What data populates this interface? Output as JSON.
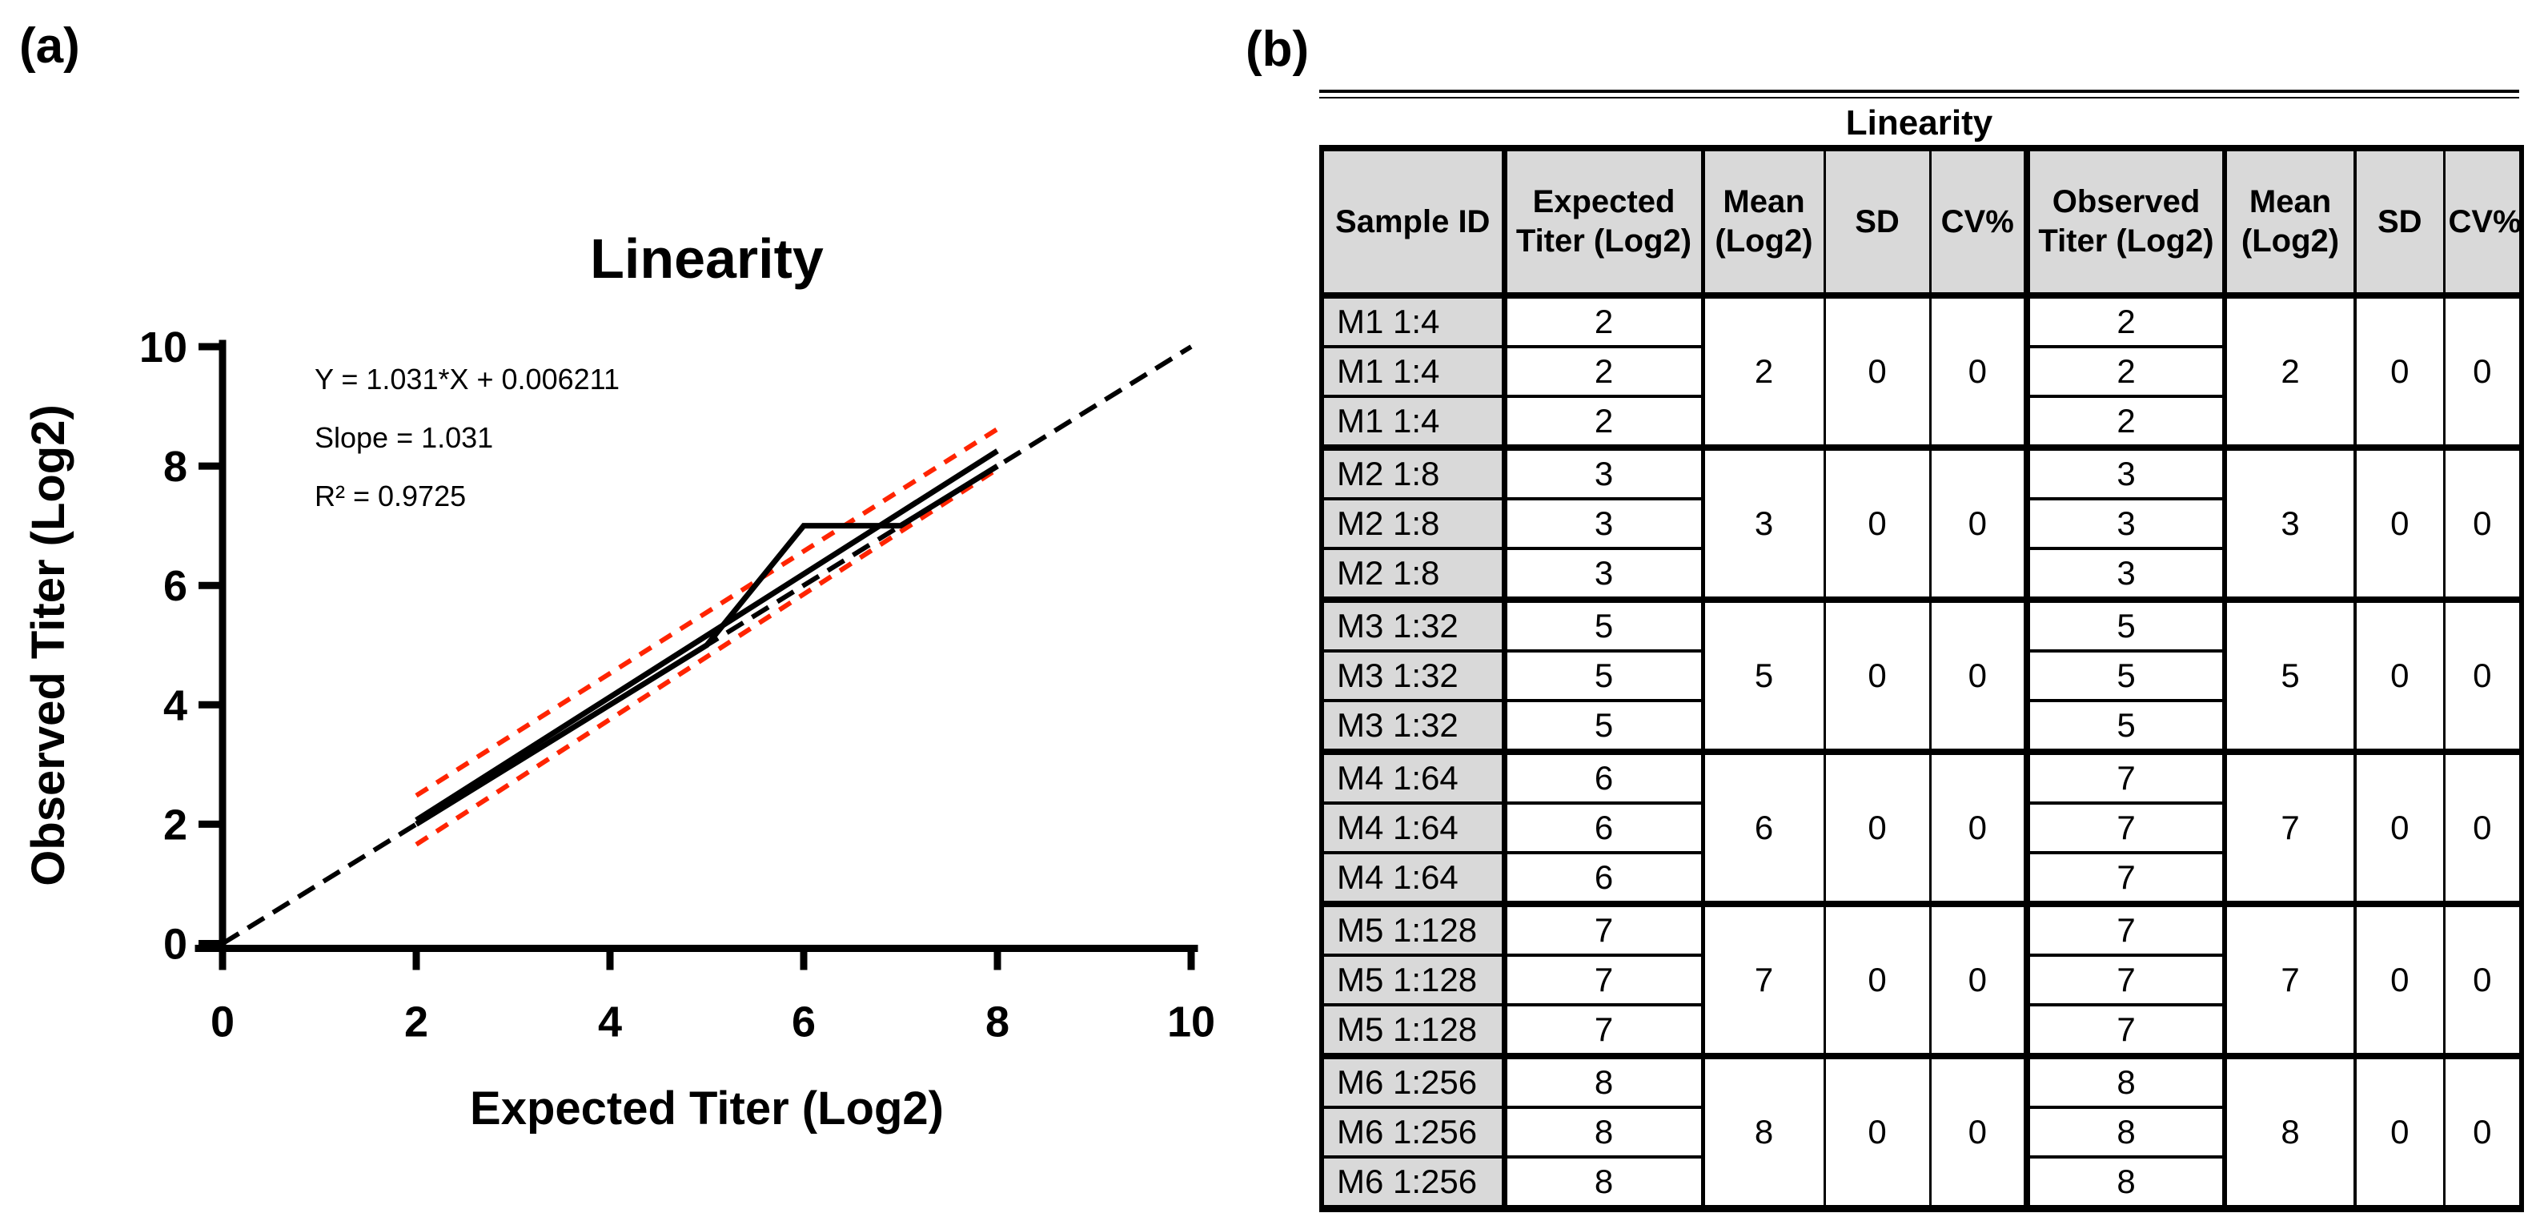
{
  "panels": {
    "a_label": "(a)",
    "b_label": "(b)"
  },
  "chart_data": {
    "type": "line",
    "title": "Linearity",
    "xlabel": "Expected Titer (Log2)",
    "ylabel": "Observed Titer (Log2)",
    "xlim": [
      0,
      10
    ],
    "ylim": [
      0,
      10
    ],
    "x_ticks": [
      0,
      2,
      4,
      6,
      8,
      10
    ],
    "y_ticks": [
      0,
      2,
      4,
      6,
      8,
      10
    ],
    "grid": "off",
    "annotations": [
      "Y = 1.031*X + 0.006211",
      "Slope = 1.031",
      "R² = 0.9725"
    ],
    "colors": {
      "ci_band": "#FF2400",
      "lines": "#000000"
    },
    "series": [
      {
        "name": "identity-line",
        "style": "dashed-black",
        "points": [
          [
            0,
            0
          ],
          [
            10,
            10
          ]
        ]
      },
      {
        "name": "linear-fit",
        "style": "solid-black",
        "points": [
          [
            2,
            2.068
          ],
          [
            8,
            8.254
          ]
        ]
      },
      {
        "name": "observed-data",
        "style": "solid-black",
        "points": [
          [
            2,
            2
          ],
          [
            3,
            3
          ],
          [
            5,
            5
          ],
          [
            6,
            7
          ],
          [
            7,
            7
          ],
          [
            8,
            8
          ]
        ]
      },
      {
        "name": "ci-upper",
        "style": "dashed-red",
        "points": [
          [
            2,
            2.48
          ],
          [
            8,
            8.62
          ]
        ]
      },
      {
        "name": "ci-lower",
        "style": "dashed-red",
        "points": [
          [
            2,
            1.66
          ],
          [
            8,
            7.95
          ]
        ]
      }
    ]
  },
  "table": {
    "title": "Linearity",
    "headers": [
      "Sample ID",
      "Expected\nTiter (Log2)",
      "Mean\n(Log2)",
      "SD",
      "CV%",
      "Observed\nTiter (Log2)",
      "Mean\n(Log2)",
      "SD",
      "CV%"
    ],
    "groups": [
      {
        "sample_id": "M1 1:4",
        "expected": [
          "2",
          "2",
          "2"
        ],
        "expected_mean": "2",
        "expected_sd": "0",
        "expected_cv": "0",
        "observed": [
          "2",
          "2",
          "2"
        ],
        "observed_mean": "2",
        "observed_sd": "0",
        "observed_cv": "0"
      },
      {
        "sample_id": "M2 1:8",
        "expected": [
          "3",
          "3",
          "3"
        ],
        "expected_mean": "3",
        "expected_sd": "0",
        "expected_cv": "0",
        "observed": [
          "3",
          "3",
          "3"
        ],
        "observed_mean": "3",
        "observed_sd": "0",
        "observed_cv": "0"
      },
      {
        "sample_id": "M3 1:32",
        "expected": [
          "5",
          "5",
          "5"
        ],
        "expected_mean": "5",
        "expected_sd": "0",
        "expected_cv": "0",
        "observed": [
          "5",
          "5",
          "5"
        ],
        "observed_mean": "5",
        "observed_sd": "0",
        "observed_cv": "0"
      },
      {
        "sample_id": "M4 1:64",
        "expected": [
          "6",
          "6",
          "6"
        ],
        "expected_mean": "6",
        "expected_sd": "0",
        "expected_cv": "0",
        "observed": [
          "7",
          "7",
          "7"
        ],
        "observed_mean": "7",
        "observed_sd": "0",
        "observed_cv": "0"
      },
      {
        "sample_id": "M5 1:128",
        "expected": [
          "7",
          "7",
          "7"
        ],
        "expected_mean": "7",
        "expected_sd": "0",
        "expected_cv": "0",
        "observed": [
          "7",
          "7",
          "7"
        ],
        "observed_mean": "7",
        "observed_sd": "0",
        "observed_cv": "0"
      },
      {
        "sample_id": "M6 1:256",
        "expected": [
          "8",
          "8",
          "8"
        ],
        "expected_mean": "8",
        "expected_sd": "0",
        "expected_cv": "0",
        "observed": [
          "8",
          "8",
          "8"
        ],
        "observed_mean": "8",
        "observed_sd": "0",
        "observed_cv": "0"
      }
    ]
  }
}
